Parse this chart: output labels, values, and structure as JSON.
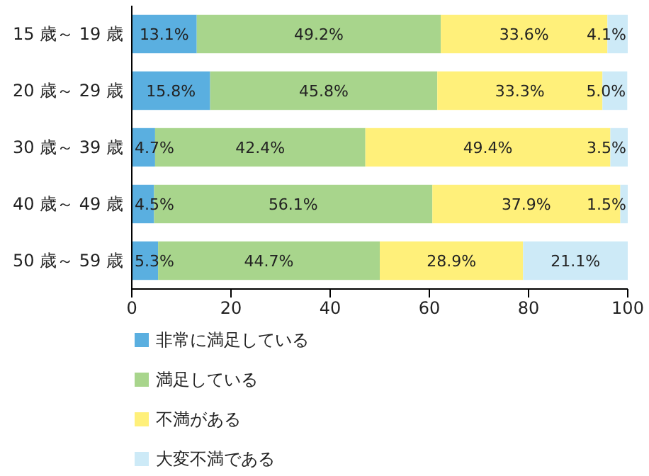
{
  "chart_data": {
    "type": "bar",
    "orientation": "horizontal",
    "stacked": true,
    "categories": [
      "15 歳～ 19 歳",
      "20 歳～ 29 歳",
      "30 歳～ 39 歳",
      "40 歳～ 49 歳",
      "50 歳～ 59 歳"
    ],
    "series": [
      {
        "name": "非常に満足している",
        "color": "#5aafe0",
        "values": [
          13.1,
          15.8,
          4.7,
          4.5,
          5.3
        ],
        "value_labels": [
          "13.1%",
          "15.8%",
          "4.7%",
          "4.5%",
          "5.3%"
        ]
      },
      {
        "name": "満足している",
        "color": "#a8d58c",
        "values": [
          49.2,
          45.8,
          42.4,
          56.1,
          44.7
        ],
        "value_labels": [
          "49.2%",
          "45.8%",
          "42.4%",
          "56.1%",
          "44.7%"
        ]
      },
      {
        "name": "不満がある",
        "color": "#fff07a",
        "values": [
          33.6,
          33.3,
          49.4,
          37.9,
          28.9
        ],
        "value_labels": [
          "33.6%",
          "33.3%",
          "49.4%",
          "37.9%",
          "28.9%"
        ]
      },
      {
        "name": "大変不満である",
        "color": "#cdeaf7",
        "values": [
          4.1,
          5.0,
          3.5,
          1.5,
          21.1
        ],
        "value_labels": [
          "4.1%",
          "5.0%",
          "3.5%",
          "1.5%",
          "21.1%"
        ]
      }
    ],
    "xlim": [
      0,
      100
    ],
    "xticks": [
      0,
      20,
      40,
      60,
      80,
      100
    ],
    "grid": false,
    "legend": "bottom"
  }
}
